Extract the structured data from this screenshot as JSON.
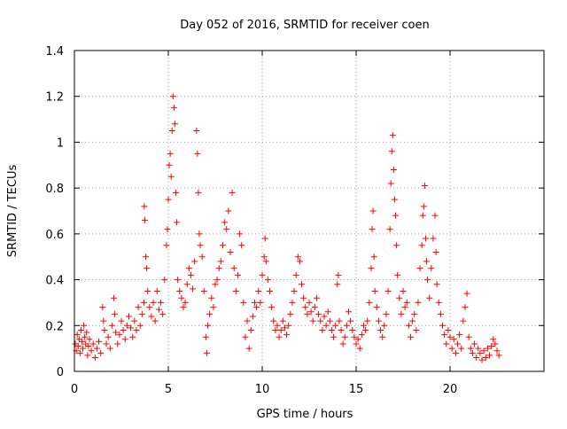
{
  "chart_data": {
    "type": "scatter",
    "title": "Day 052 of 2016, SRMTID for receiver coen",
    "xlabel": "GPS time / hours",
    "ylabel": "SRMTID / TECUs",
    "xlim": [
      0,
      25
    ],
    "ylim": [
      0,
      1.4
    ],
    "x_ticks": [
      0,
      5,
      10,
      15,
      20
    ],
    "x_tick_labels": [
      "0",
      "5",
      "10",
      "15",
      "20"
    ],
    "y_ticks": [
      0,
      0.2,
      0.4,
      0.6,
      0.8,
      1.0,
      1.2,
      1.4
    ],
    "y_tick_labels": [
      "0",
      "0.2",
      "0.4",
      "0.6",
      "0.8",
      "1",
      "1.2",
      "1.4"
    ],
    "grid": true,
    "marker": "+",
    "colors": {
      "series": "#ff0000",
      "grid": "#a0a0a0",
      "axis": "#000000"
    },
    "series": [
      {
        "name": "SRMTID",
        "points": [
          [
            0.05,
            0.12
          ],
          [
            0.1,
            0.09
          ],
          [
            0.15,
            0.16
          ],
          [
            0.2,
            0.11
          ],
          [
            0.25,
            0.14
          ],
          [
            0.3,
            0.08
          ],
          [
            0.35,
            0.18
          ],
          [
            0.4,
            0.13
          ],
          [
            0.45,
            0.1
          ],
          [
            0.5,
            0.2
          ],
          [
            0.55,
            0.15
          ],
          [
            0.6,
            0.12
          ],
          [
            0.65,
            0.17
          ],
          [
            0.7,
            0.07
          ],
          [
            0.75,
            0.11
          ],
          [
            0.8,
            0.14
          ],
          [
            0.9,
            0.09
          ],
          [
            1.0,
            0.12
          ],
          [
            1.1,
            0.06
          ],
          [
            1.2,
            0.1
          ],
          [
            1.3,
            0.13
          ],
          [
            1.4,
            0.08
          ],
          [
            1.5,
            0.28
          ],
          [
            1.55,
            0.22
          ],
          [
            1.6,
            0.18
          ],
          [
            1.7,
            0.12
          ],
          [
            1.8,
            0.15
          ],
          [
            1.9,
            0.1
          ],
          [
            2.0,
            0.2
          ],
          [
            2.1,
            0.32
          ],
          [
            2.15,
            0.25
          ],
          [
            2.2,
            0.17
          ],
          [
            2.3,
            0.12
          ],
          [
            2.4,
            0.16
          ],
          [
            2.5,
            0.22
          ],
          [
            2.6,
            0.18
          ],
          [
            2.7,
            0.14
          ],
          [
            2.8,
            0.2
          ],
          [
            2.9,
            0.24
          ],
          [
            3.0,
            0.19
          ],
          [
            3.1,
            0.15
          ],
          [
            3.2,
            0.22
          ],
          [
            3.3,
            0.18
          ],
          [
            3.4,
            0.28
          ],
          [
            3.5,
            0.2
          ],
          [
            3.6,
            0.25
          ],
          [
            3.7,
            0.3
          ],
          [
            3.72,
            0.72
          ],
          [
            3.75,
            0.66
          ],
          [
            3.8,
            0.5
          ],
          [
            3.85,
            0.45
          ],
          [
            3.9,
            0.35
          ],
          [
            4.0,
            0.28
          ],
          [
            4.1,
            0.24
          ],
          [
            4.2,
            0.3
          ],
          [
            4.3,
            0.22
          ],
          [
            4.4,
            0.35
          ],
          [
            4.5,
            0.27
          ],
          [
            4.6,
            0.3
          ],
          [
            4.7,
            0.25
          ],
          [
            4.8,
            0.4
          ],
          [
            4.9,
            0.55
          ],
          [
            4.95,
            0.62
          ],
          [
            5.0,
            0.75
          ],
          [
            5.05,
            0.9
          ],
          [
            5.1,
            0.95
          ],
          [
            5.15,
            0.85
          ],
          [
            5.2,
            1.05
          ],
          [
            5.25,
            1.2
          ],
          [
            5.3,
            1.15
          ],
          [
            5.35,
            1.08
          ],
          [
            5.4,
            0.78
          ],
          [
            5.45,
            0.65
          ],
          [
            5.5,
            0.4
          ],
          [
            5.6,
            0.35
          ],
          [
            5.7,
            0.32
          ],
          [
            5.8,
            0.28
          ],
          [
            5.9,
            0.3
          ],
          [
            6.0,
            0.38
          ],
          [
            6.1,
            0.45
          ],
          [
            6.2,
            0.42
          ],
          [
            6.3,
            0.36
          ],
          [
            6.4,
            0.48
          ],
          [
            6.5,
            1.05
          ],
          [
            6.55,
            0.95
          ],
          [
            6.6,
            0.78
          ],
          [
            6.65,
            0.6
          ],
          [
            6.7,
            0.55
          ],
          [
            6.8,
            0.5
          ],
          [
            6.9,
            0.35
          ],
          [
            7.0,
            0.15
          ],
          [
            7.05,
            0.08
          ],
          [
            7.1,
            0.2
          ],
          [
            7.2,
            0.25
          ],
          [
            7.3,
            0.32
          ],
          [
            7.4,
            0.28
          ],
          [
            7.5,
            0.38
          ],
          [
            7.6,
            0.4
          ],
          [
            7.7,
            0.45
          ],
          [
            7.8,
            0.48
          ],
          [
            7.9,
            0.55
          ],
          [
            8.0,
            0.65
          ],
          [
            8.1,
            0.62
          ],
          [
            8.2,
            0.7
          ],
          [
            8.3,
            0.52
          ],
          [
            8.4,
            0.78
          ],
          [
            8.5,
            0.45
          ],
          [
            8.6,
            0.35
          ],
          [
            8.7,
            0.42
          ],
          [
            8.8,
            0.6
          ],
          [
            8.9,
            0.55
          ],
          [
            9.0,
            0.3
          ],
          [
            9.1,
            0.15
          ],
          [
            9.2,
            0.22
          ],
          [
            9.3,
            0.1
          ],
          [
            9.4,
            0.18
          ],
          [
            9.5,
            0.24
          ],
          [
            9.6,
            0.3
          ],
          [
            9.7,
            0.28
          ],
          [
            9.8,
            0.35
          ],
          [
            9.9,
            0.3
          ],
          [
            10.0,
            0.42
          ],
          [
            10.1,
            0.5
          ],
          [
            10.15,
            0.58
          ],
          [
            10.2,
            0.48
          ],
          [
            10.3,
            0.4
          ],
          [
            10.4,
            0.35
          ],
          [
            10.5,
            0.28
          ],
          [
            10.6,
            0.22
          ],
          [
            10.7,
            0.18
          ],
          [
            10.8,
            0.2
          ],
          [
            10.9,
            0.15
          ],
          [
            11.0,
            0.18
          ],
          [
            11.1,
            0.22
          ],
          [
            11.2,
            0.19
          ],
          [
            11.3,
            0.16
          ],
          [
            11.4,
            0.2
          ],
          [
            11.5,
            0.25
          ],
          [
            11.6,
            0.3
          ],
          [
            11.7,
            0.35
          ],
          [
            11.8,
            0.42
          ],
          [
            11.9,
            0.5
          ],
          [
            12.0,
            0.48
          ],
          [
            12.1,
            0.38
          ],
          [
            12.2,
            0.32
          ],
          [
            12.3,
            0.28
          ],
          [
            12.4,
            0.25
          ],
          [
            12.5,
            0.3
          ],
          [
            12.6,
            0.26
          ],
          [
            12.7,
            0.22
          ],
          [
            12.8,
            0.28
          ],
          [
            12.9,
            0.32
          ],
          [
            13.0,
            0.25
          ],
          [
            13.1,
            0.22
          ],
          [
            13.2,
            0.18
          ],
          [
            13.3,
            0.24
          ],
          [
            13.4,
            0.2
          ],
          [
            13.5,
            0.26
          ],
          [
            13.6,
            0.22
          ],
          [
            13.7,
            0.18
          ],
          [
            13.8,
            0.15
          ],
          [
            13.9,
            0.2
          ],
          [
            14.0,
            0.38
          ],
          [
            14.05,
            0.42
          ],
          [
            14.1,
            0.22
          ],
          [
            14.2,
            0.18
          ],
          [
            14.3,
            0.12
          ],
          [
            14.4,
            0.15
          ],
          [
            14.5,
            0.2
          ],
          [
            14.6,
            0.26
          ],
          [
            14.7,
            0.22
          ],
          [
            14.8,
            0.18
          ],
          [
            14.9,
            0.15
          ],
          [
            15.0,
            0.12
          ],
          [
            15.1,
            0.14
          ],
          [
            15.2,
            0.1
          ],
          [
            15.3,
            0.16
          ],
          [
            15.4,
            0.2
          ],
          [
            15.5,
            0.18
          ],
          [
            15.6,
            0.22
          ],
          [
            15.7,
            0.3
          ],
          [
            15.8,
            0.45
          ],
          [
            15.85,
            0.62
          ],
          [
            15.9,
            0.7
          ],
          [
            15.95,
            0.5
          ],
          [
            16.0,
            0.35
          ],
          [
            16.1,
            0.28
          ],
          [
            16.2,
            0.22
          ],
          [
            16.3,
            0.18
          ],
          [
            16.4,
            0.15
          ],
          [
            16.5,
            0.2
          ],
          [
            16.6,
            0.25
          ],
          [
            16.7,
            0.35
          ],
          [
            16.8,
            0.62
          ],
          [
            16.85,
            0.82
          ],
          [
            16.9,
            0.96
          ],
          [
            16.95,
            1.03
          ],
          [
            17.0,
            0.88
          ],
          [
            17.05,
            0.75
          ],
          [
            17.1,
            0.68
          ],
          [
            17.15,
            0.55
          ],
          [
            17.2,
            0.42
          ],
          [
            17.3,
            0.32
          ],
          [
            17.4,
            0.25
          ],
          [
            17.5,
            0.35
          ],
          [
            17.6,
            0.28
          ],
          [
            17.7,
            0.3
          ],
          [
            17.8,
            0.2
          ],
          [
            17.9,
            0.15
          ],
          [
            18.0,
            0.22
          ],
          [
            18.1,
            0.25
          ],
          [
            18.2,
            0.18
          ],
          [
            18.3,
            0.3
          ],
          [
            18.4,
            0.45
          ],
          [
            18.5,
            0.55
          ],
          [
            18.55,
            0.68
          ],
          [
            18.6,
            0.72
          ],
          [
            18.65,
            0.81
          ],
          [
            18.7,
            0.58
          ],
          [
            18.75,
            0.48
          ],
          [
            18.8,
            0.4
          ],
          [
            18.9,
            0.32
          ],
          [
            19.0,
            0.45
          ],
          [
            19.1,
            0.58
          ],
          [
            19.2,
            0.68
          ],
          [
            19.25,
            0.52
          ],
          [
            19.3,
            0.38
          ],
          [
            19.4,
            0.3
          ],
          [
            19.5,
            0.25
          ],
          [
            19.6,
            0.2
          ],
          [
            19.7,
            0.16
          ],
          [
            19.8,
            0.12
          ],
          [
            19.9,
            0.18
          ],
          [
            20.0,
            0.15
          ],
          [
            20.1,
            0.1
          ],
          [
            20.2,
            0.14
          ],
          [
            20.3,
            0.08
          ],
          [
            20.4,
            0.12
          ],
          [
            20.5,
            0.16
          ],
          [
            20.6,
            0.1
          ],
          [
            20.7,
            0.22
          ],
          [
            20.8,
            0.28
          ],
          [
            20.9,
            0.34
          ],
          [
            21.0,
            0.15
          ],
          [
            21.1,
            0.1
          ],
          [
            21.2,
            0.08
          ],
          [
            21.3,
            0.12
          ],
          [
            21.4,
            0.06
          ],
          [
            21.5,
            0.1
          ],
          [
            21.6,
            0.08
          ],
          [
            21.7,
            0.05
          ],
          [
            21.8,
            0.09
          ],
          [
            21.9,
            0.06
          ],
          [
            22.0,
            0.1
          ],
          [
            22.1,
            0.07
          ],
          [
            22.2,
            0.11
          ],
          [
            22.3,
            0.14
          ],
          [
            22.4,
            0.12
          ],
          [
            22.5,
            0.09
          ],
          [
            22.6,
            0.07
          ]
        ]
      }
    ]
  }
}
